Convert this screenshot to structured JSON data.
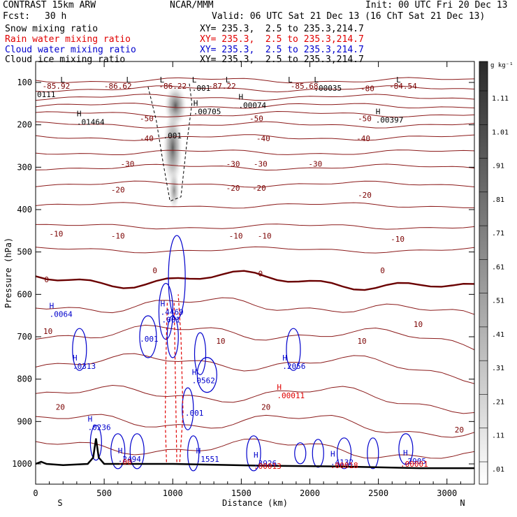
{
  "header": {
    "model": "CONTRAST 15km ARW",
    "center": "NCAR/MMM",
    "init": "Init: 00 UTC Fri 20 Dec 13",
    "fcst_label": "Fcst:",
    "fcst_value": "30 h",
    "valid": "Valid: 06 UTC Sat 21 Dec 13 (16 ChT Sat 21 Dec 13)",
    "fields": [
      {
        "name": "Snow mixing ratio",
        "xy": "XY= 235.3,  2.5 to 235.3,214.7",
        "color": "#000000"
      },
      {
        "name": "Rain water mixing ratio",
        "xy": "XY= 235.3,  2.5 to 235.3,214.7",
        "color": "#e00000"
      },
      {
        "name": "Cloud water mixing ratio",
        "xy": "XY= 235.3,  2.5 to 235.3,214.7",
        "color": "#0000cc"
      },
      {
        "name": "Cloud ice mixing ratio",
        "xy": "XY= 235.3,  2.5 to 235.3,214.7",
        "color": "#000000"
      }
    ]
  },
  "chart_data": {
    "type": "cross-section",
    "xlabel": "Distance (km)",
    "ylabel": "Pressure (hPa)",
    "xlim": [
      0,
      3200
    ],
    "ylim": [
      1050,
      50
    ],
    "x_ticks": [
      0,
      500,
      1000,
      1500,
      2000,
      2500,
      3000
    ],
    "x_tick_labels": [
      "0",
      "500",
      "1000",
      "1500",
      "2000",
      "2500",
      "3000"
    ],
    "y_ticks": [
      100,
      200,
      300,
      400,
      500,
      600,
      700,
      800,
      900,
      1000
    ],
    "y_tick_labels": [
      "100",
      "200",
      "300",
      "400",
      "500",
      "600",
      "700",
      "800",
      "900",
      "1000"
    ],
    "x_end_labels": {
      "left": "S",
      "right": "N"
    },
    "colorbar": {
      "unit": "g kg⁻¹",
      "labels": [
        "1.11",
        "1.01",
        ".91",
        ".81",
        ".71",
        ".61",
        ".51",
        ".41",
        ".31",
        ".21",
        ".11",
        ".01"
      ],
      "values": [
        1.11,
        1.01,
        0.91,
        0.81,
        0.71,
        0.61,
        0.51,
        0.41,
        0.31,
        0.21,
        0.11,
        0.01
      ]
    },
    "temperature_contour_labels": [
      {
        "x": 150,
        "p": 108,
        "text": "-85.92"
      },
      {
        "x": 600,
        "p": 108,
        "text": "-86.62"
      },
      {
        "x": 1000,
        "p": 108,
        "text": "-86.22"
      },
      {
        "x": 1360,
        "p": 108,
        "text": "-87.22"
      },
      {
        "x": 1960,
        "p": 108,
        "text": "-85.68"
      },
      {
        "x": 2420,
        "p": 114,
        "text": "-80"
      },
      {
        "x": 2680,
        "p": 108,
        "text": "-84.54"
      },
      {
        "x": 810,
        "p": 185,
        "text": "-50"
      },
      {
        "x": 1610,
        "p": 185,
        "text": "-50"
      },
      {
        "x": 2400,
        "p": 185,
        "text": "-50"
      },
      {
        "x": 810,
        "p": 232,
        "text": "-40"
      },
      {
        "x": 1660,
        "p": 232,
        "text": "-40"
      },
      {
        "x": 2390,
        "p": 232,
        "text": "-40"
      },
      {
        "x": 670,
        "p": 292,
        "text": "-30"
      },
      {
        "x": 1440,
        "p": 292,
        "text": "-30"
      },
      {
        "x": 1640,
        "p": 292,
        "text": "-30"
      },
      {
        "x": 2040,
        "p": 292,
        "text": "-30"
      },
      {
        "x": 600,
        "p": 353,
        "text": "-20"
      },
      {
        "x": 1440,
        "p": 349,
        "text": "-20"
      },
      {
        "x": 1630,
        "p": 349,
        "text": "-20"
      },
      {
        "x": 2400,
        "p": 365,
        "text": "-20"
      },
      {
        "x": 150,
        "p": 457,
        "text": "-10"
      },
      {
        "x": 600,
        "p": 462,
        "text": "-10"
      },
      {
        "x": 1460,
        "p": 462,
        "text": "-10"
      },
      {
        "x": 1670,
        "p": 462,
        "text": "-10"
      },
      {
        "x": 2640,
        "p": 469,
        "text": "-10"
      },
      {
        "x": 80,
        "p": 565,
        "text": "0"
      },
      {
        "x": 870,
        "p": 543,
        "text": "0"
      },
      {
        "x": 1640,
        "p": 551,
        "text": "0"
      },
      {
        "x": 2530,
        "p": 543,
        "text": "0"
      },
      {
        "x": 90,
        "p": 687,
        "text": "10"
      },
      {
        "x": 1350,
        "p": 710,
        "text": "10"
      },
      {
        "x": 2380,
        "p": 710,
        "text": "10"
      },
      {
        "x": 2790,
        "p": 670,
        "text": "10"
      },
      {
        "x": 180,
        "p": 866,
        "text": "20"
      },
      {
        "x": 1680,
        "p": 866,
        "text": "20"
      },
      {
        "x": 3090,
        "p": 919,
        "text": "20"
      }
    ],
    "extrema_labels": [
      {
        "x": 180,
        "p": 100,
        "mark": "L",
        "value": ""
      },
      {
        "x": 10,
        "p": 128,
        "mark": "",
        "value": "0111"
      },
      {
        "x": 660,
        "p": 100,
        "mark": "L",
        "value": ""
      },
      {
        "x": 905,
        "p": 100,
        "mark": "L",
        "value": ""
      },
      {
        "x": 1140,
        "p": 100,
        "mark": "L",
        "value": ".001"
      },
      {
        "x": 1385,
        "p": 100,
        "mark": "L",
        "value": ""
      },
      {
        "x": 1840,
        "p": 100,
        "mark": "L",
        "value": ""
      },
      {
        "x": 2030,
        "p": 100,
        "mark": "L",
        "value": ".00035"
      },
      {
        "x": 2630,
        "p": 100,
        "mark": "L",
        "value": ""
      },
      {
        "x": 1150,
        "p": 155,
        "mark": "H",
        "value": ".00705"
      },
      {
        "x": 1480,
        "p": 140,
        "mark": "H",
        "value": ".00074"
      },
      {
        "x": 2480,
        "p": 175,
        "mark": "H",
        "value": ".00397"
      },
      {
        "x": 300,
        "p": 180,
        "mark": "H",
        "value": ".01464"
      },
      {
        "x": 930,
        "p": 225,
        "mark": "",
        "value": ".001"
      },
      {
        "x": 100,
        "p": 633,
        "mark": "H",
        "value": ".0064"
      },
      {
        "x": 910,
        "p": 628,
        "mark": "H",
        "value": ".4469"
      },
      {
        "x": 920,
        "p": 660,
        "mark": "",
        "value": ".001"
      },
      {
        "x": 760,
        "p": 705,
        "mark": "",
        "value": ".001"
      },
      {
        "x": 270,
        "p": 756,
        "mark": "H",
        "value": ".0313"
      },
      {
        "x": 1800,
        "p": 756,
        "mark": "H",
        "value": ".2056"
      },
      {
        "x": 1140,
        "p": 790,
        "mark": "H",
        "value": ".0562"
      },
      {
        "x": 1760,
        "p": 825,
        "mark": "H",
        "value": ".00011"
      },
      {
        "x": 1090,
        "p": 880,
        "mark": "",
        "value": ".001"
      },
      {
        "x": 380,
        "p": 900,
        "mark": "H",
        "value": ".0236"
      },
      {
        "x": 600,
        "p": 975,
        "mark": "H",
        "value": ".2494"
      },
      {
        "x": 600,
        "p": 995,
        "mark": "",
        "value": ".00"
      },
      {
        "x": 1170,
        "p": 975,
        "mark": "H",
        "value": ".1551"
      },
      {
        "x": 1590,
        "p": 985,
        "mark": "H",
        "value": ".3926"
      },
      {
        "x": 1590,
        "p": 1005,
        "mark": "",
        "value": ".00013"
      },
      {
        "x": 2150,
        "p": 983,
        "mark": "H",
        "value": ".4132"
      },
      {
        "x": 2150,
        "p": 1003,
        "mark": "",
        "value": ".00018"
      },
      {
        "x": 2680,
        "p": 980,
        "mark": "H",
        "value": ".2905"
      },
      {
        "x": 2660,
        "p": 1000,
        "mark": "",
        "value": ".00001"
      }
    ]
  }
}
